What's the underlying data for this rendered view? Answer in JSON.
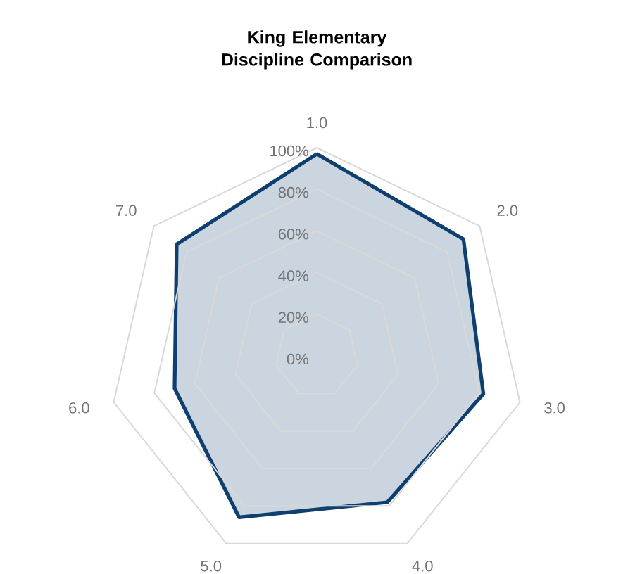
{
  "chart_data": {
    "type": "radar",
    "title": "King Elementary Discipline Comparison",
    "categories": [
      "1.0",
      "2.0",
      "3.0",
      "4.0",
      "5.0",
      "6.0",
      "7.0"
    ],
    "series": [
      {
        "color": "#0e3f6e",
        "values": [
          97,
          90,
          82,
          78,
          86,
          70,
          86
        ]
      }
    ],
    "ylim": [
      0,
      100
    ],
    "yticks": [
      {
        "value": 0,
        "label": "0%"
      },
      {
        "value": 20,
        "label": "20%"
      },
      {
        "value": 40,
        "label": "40%"
      },
      {
        "value": 60,
        "label": "60%"
      },
      {
        "value": 80,
        "label": "80%"
      },
      {
        "value": 100,
        "label": "100%"
      }
    ],
    "grid": true
  }
}
